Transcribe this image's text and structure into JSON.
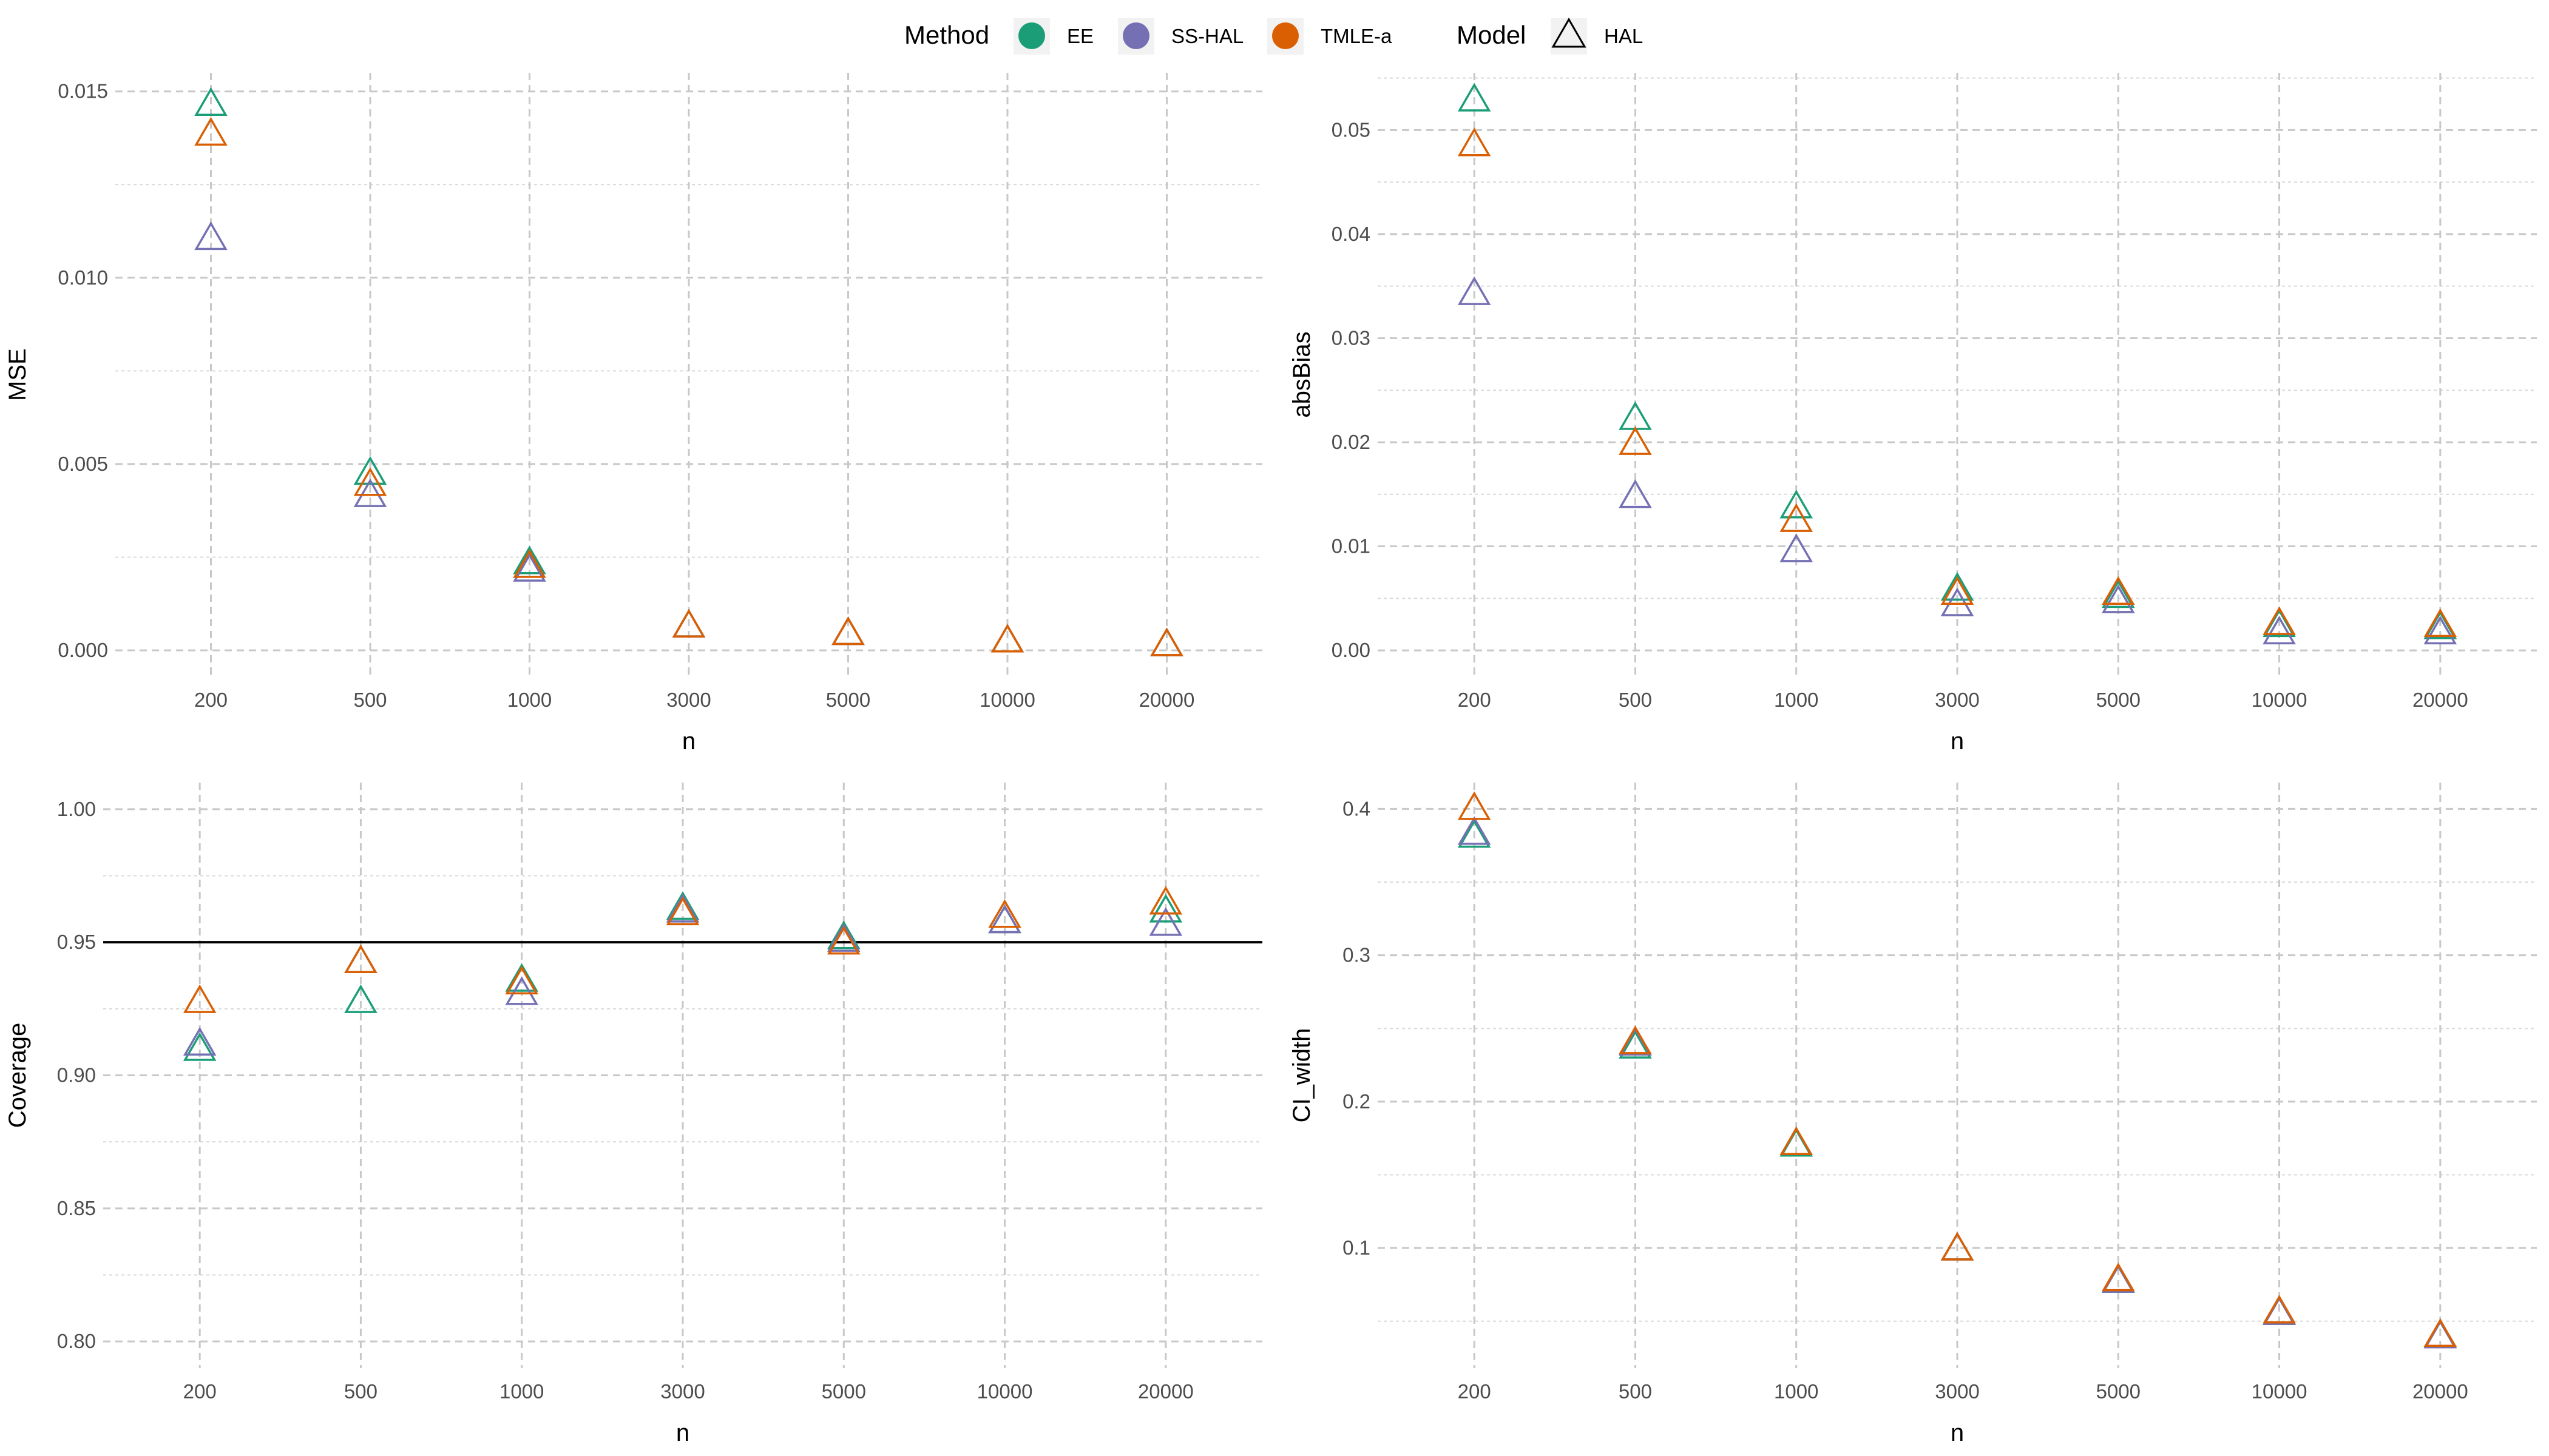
{
  "legend": {
    "method_title": "Method",
    "model_title": "Model",
    "methods": [
      {
        "name": "EE",
        "color": "#1b9e77"
      },
      {
        "name": "SS-HAL",
        "color": "#7570b3"
      },
      {
        "name": "TMLE-a",
        "color": "#d95f02"
      }
    ],
    "models": [
      {
        "name": "HAL",
        "shape": "open-triangle"
      }
    ]
  },
  "chart_data": [
    {
      "type": "scatter",
      "xlabel": "n",
      "ylabel": "MSE",
      "categories": [
        "200",
        "500",
        "1000",
        "3000",
        "5000",
        "10000",
        "20000"
      ],
      "ylim": [
        -0.0007,
        0.0155
      ],
      "yticks": [
        0.0,
        0.005,
        0.01,
        0.015
      ],
      "ytick_labels": [
        "0.000",
        "0.005",
        "0.010",
        "0.015"
      ],
      "grid": true,
      "series": [
        {
          "name": "EE",
          "color": "#1b9e77",
          "values": [
            0.0146,
            0.0047,
            0.0023,
            0.0006,
            0.0004,
            0.0002,
            0.0001
          ]
        },
        {
          "name": "SS-HAL",
          "color": "#7570b3",
          "values": [
            0.011,
            0.0041,
            0.0021,
            0.0006,
            0.0004,
            0.0002,
            0.0001
          ]
        },
        {
          "name": "TMLE-a",
          "color": "#d95f02",
          "values": [
            0.0138,
            0.0044,
            0.0022,
            0.0006,
            0.0004,
            0.0002,
            0.0001
          ]
        }
      ]
    },
    {
      "type": "scatter",
      "xlabel": "n",
      "ylabel": "absBias",
      "categories": [
        "200",
        "500",
        "1000",
        "3000",
        "5000",
        "10000",
        "20000"
      ],
      "ylim": [
        -0.0025,
        0.0555
      ],
      "yticks": [
        0.0,
        0.01,
        0.02,
        0.03,
        0.04,
        0.05
      ],
      "ytick_labels": [
        "0.00",
        "0.01",
        "0.02",
        "0.03",
        "0.04",
        "0.05"
      ],
      "grid": true,
      "series": [
        {
          "name": "EE",
          "color": "#1b9e77",
          "values": [
            0.0527,
            0.0221,
            0.0136,
            0.0057,
            0.005,
            0.0022,
            0.002
          ]
        },
        {
          "name": "SS-HAL",
          "color": "#7570b3",
          "values": [
            0.0341,
            0.0146,
            0.0094,
            0.0042,
            0.0045,
            0.0015,
            0.0015
          ]
        },
        {
          "name": "TMLE-a",
          "color": "#d95f02",
          "values": [
            0.0484,
            0.0197,
            0.0123,
            0.0053,
            0.0053,
            0.0024,
            0.0022
          ]
        }
      ]
    },
    {
      "type": "scatter",
      "xlabel": "n",
      "ylabel": "Coverage",
      "categories": [
        "200",
        "500",
        "1000",
        "3000",
        "5000",
        "10000",
        "20000"
      ],
      "ylim": [
        0.79,
        1.01
      ],
      "yticks": [
        0.8,
        0.85,
        0.9,
        0.95,
        1.0
      ],
      "ytick_labels": [
        "0.80",
        "0.85",
        "0.90",
        "0.95",
        "1.00"
      ],
      "reference_line": 0.95,
      "grid": true,
      "series": [
        {
          "name": "EE",
          "color": "#1b9e77",
          "values": [
            0.909,
            0.927,
            0.935,
            0.962,
            0.951,
            0.957,
            0.961
          ]
        },
        {
          "name": "SS-HAL",
          "color": "#7570b3",
          "values": [
            0.911,
            0.942,
            0.93,
            0.961,
            0.95,
            0.957,
            0.956
          ]
        },
        {
          "name": "TMLE-a",
          "color": "#d95f02",
          "values": [
            0.927,
            0.942,
            0.934,
            0.96,
            0.949,
            0.959,
            0.964
          ]
        }
      ]
    },
    {
      "type": "scatter",
      "xlabel": "n",
      "ylabel": "CI_width",
      "categories": [
        "200",
        "500",
        "1000",
        "3000",
        "5000",
        "10000",
        "20000"
      ],
      "ylim": [
        0.018,
        0.418
      ],
      "yticks": [
        0.1,
        0.2,
        0.3,
        0.4
      ],
      "ytick_labels": [
        "0.1",
        "0.2",
        "0.3",
        "0.4"
      ],
      "grid": true,
      "series": [
        {
          "name": "EE",
          "color": "#1b9e77",
          "values": [
            0.38,
            0.236,
            0.169,
            0.098,
            0.076,
            0.054,
            0.038
          ]
        },
        {
          "name": "SS-HAL",
          "color": "#7570b3",
          "values": [
            0.382,
            0.238,
            0.17,
            0.098,
            0.076,
            0.054,
            0.038
          ]
        },
        {
          "name": "TMLE-a",
          "color": "#d95f02",
          "values": [
            0.399,
            0.239,
            0.17,
            0.098,
            0.077,
            0.055,
            0.039
          ]
        }
      ]
    }
  ]
}
